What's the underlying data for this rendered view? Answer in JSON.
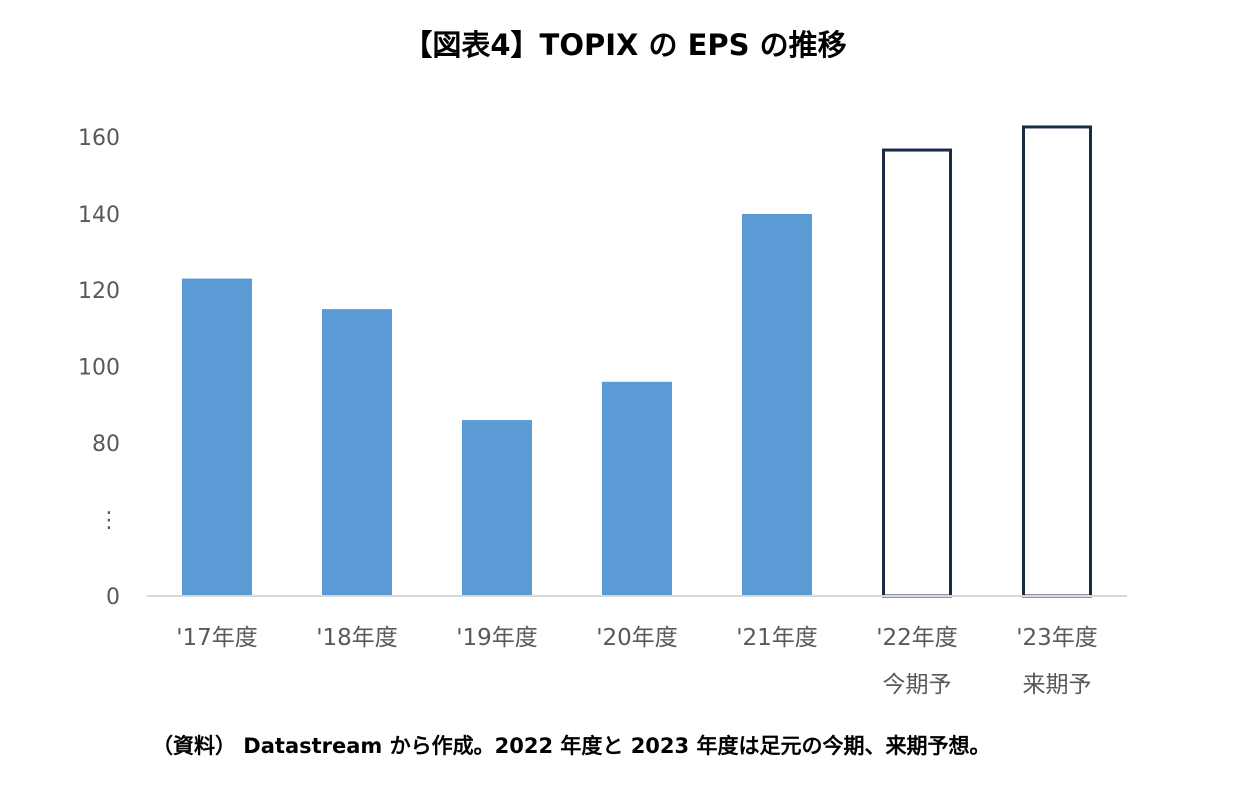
{
  "chart_data": {
    "type": "bar",
    "title": "【図表4】TOPIX の EPS の推移",
    "note": "（資料） Datastream から作成。2022 年度と 2023 年度は足元の今期、来期予想。",
    "categories": [
      [
        "'17年度"
      ],
      [
        "'18年度"
      ],
      [
        "'19年度"
      ],
      [
        "'20年度"
      ],
      [
        "'21年度"
      ],
      [
        "'22年度",
        "今期予"
      ],
      [
        "'23年度",
        "来期予"
      ]
    ],
    "values": [
      123,
      115,
      86,
      96,
      140,
      157,
      163
    ],
    "forecast": [
      false,
      false,
      false,
      false,
      false,
      true,
      true
    ],
    "yticks": [
      "0",
      "⋮",
      "80",
      "100",
      "120",
      "140",
      "160"
    ],
    "ylim": [
      0,
      160
    ],
    "axis_break": "⋮",
    "colors": {
      "actual": "#5b9bd5",
      "forecast_stroke": "#1b2a4a",
      "forecast_fill": "#ffffff",
      "axis": "#d9d9d9"
    }
  }
}
